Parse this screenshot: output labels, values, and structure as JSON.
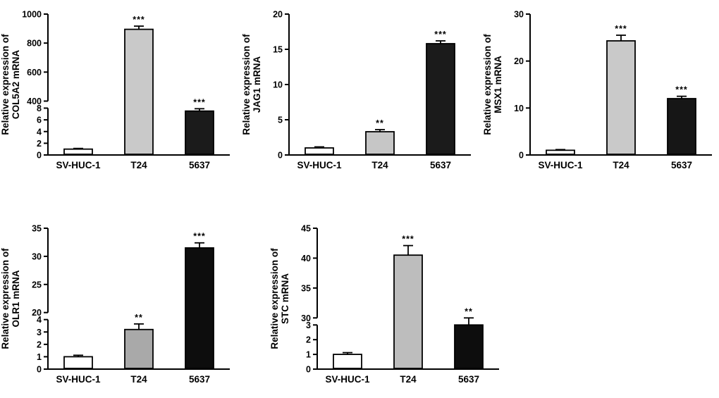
{
  "figure": {
    "background": "#ffffff",
    "axis_color": "#000000",
    "categories": [
      "SV-HUC-1",
      "T24",
      "5637"
    ]
  },
  "chart_data": [
    {
      "type": "bar",
      "ylabel_line1": "Relative expression of",
      "ylabel_line2": "COL5A2 mRNA",
      "categories": [
        "SV-HUC-1",
        "T24",
        "5637"
      ],
      "values": [
        1.0,
        895,
        7.5
      ],
      "errors": [
        0.12,
        22,
        0.4
      ],
      "significance": [
        "",
        "***",
        "***"
      ],
      "bar_colors": [
        "#ffffff",
        "#c9c9c9",
        "#1b1b1b"
      ],
      "axis": {
        "broken": true,
        "lower_frac": 0.35,
        "segments": [
          {
            "min": 0,
            "max": 8,
            "ticks": [
              0,
              2,
              4,
              6,
              8
            ]
          },
          {
            "min": 400,
            "max": 1000,
            "ticks": [
              400,
              600,
              800,
              1000
            ]
          }
        ]
      }
    },
    {
      "type": "bar",
      "ylabel_line1": "Relative expression of",
      "ylabel_line2": "JAG1 mRNA",
      "categories": [
        "SV-HUC-1",
        "T24",
        "5637"
      ],
      "values": [
        1.0,
        3.3,
        15.8
      ],
      "errors": [
        0.15,
        0.3,
        0.4
      ],
      "significance": [
        "",
        "**",
        "***"
      ],
      "bar_colors": [
        "#ffffff",
        "#c6c6c6",
        "#1b1b1b"
      ],
      "axis": {
        "broken": false,
        "segments": [
          {
            "min": 0,
            "max": 20,
            "ticks": [
              0,
              5,
              10,
              15,
              20
            ]
          }
        ]
      }
    },
    {
      "type": "bar",
      "ylabel_line1": "Relative expression of",
      "ylabel_line2": "MSX1 mRNA",
      "categories": [
        "SV-HUC-1",
        "T24",
        "5637"
      ],
      "values": [
        1.0,
        24.3,
        12.0
      ],
      "errors": [
        0.15,
        1.2,
        0.5
      ],
      "significance": [
        "",
        "***",
        "***"
      ],
      "bar_colors": [
        "#ffffff",
        "#c9c9c9",
        "#161616"
      ],
      "axis": {
        "broken": false,
        "segments": [
          {
            "min": 0,
            "max": 30,
            "ticks": [
              0,
              10,
              20,
              30
            ]
          }
        ]
      }
    },
    {
      "type": "bar",
      "ylabel_line1": "Relative expression of",
      "ylabel_line2": "OLR1 mRNA",
      "categories": [
        "SV-HUC-1",
        "T24",
        "5637"
      ],
      "values": [
        1.0,
        3.2,
        31.5
      ],
      "errors": [
        0.12,
        0.45,
        0.9
      ],
      "significance": [
        "",
        "**",
        "***"
      ],
      "bar_colors": [
        "#ffffff",
        "#a9a9a9",
        "#0d0d0d"
      ],
      "axis": {
        "broken": true,
        "lower_frac": 0.37,
        "segments": [
          {
            "min": 0,
            "max": 4,
            "ticks": [
              0,
              1,
              2,
              3,
              4
            ]
          },
          {
            "min": 20,
            "max": 35,
            "ticks": [
              20,
              25,
              30,
              35
            ]
          }
        ]
      }
    },
    {
      "type": "bar",
      "ylabel_line1": "Relative expression of",
      "ylabel_line2": "STC mRNA",
      "categories": [
        "SV-HUC-1",
        "T24",
        "5637"
      ],
      "values": [
        1.0,
        40.5,
        3.0
      ],
      "errors": [
        0.12,
        1.6,
        0.3
      ],
      "significance": [
        "",
        "***",
        "**"
      ],
      "bar_colors": [
        "#ffffff",
        "#bdbdbd",
        "#0d0d0d"
      ],
      "axis": {
        "broken": true,
        "lower_frac": 0.33,
        "segments": [
          {
            "min": 0,
            "max": 3,
            "ticks": [
              0,
              1,
              2,
              3
            ]
          },
          {
            "min": 30,
            "max": 45,
            "ticks": [
              30,
              35,
              40,
              45
            ]
          }
        ]
      }
    }
  ]
}
